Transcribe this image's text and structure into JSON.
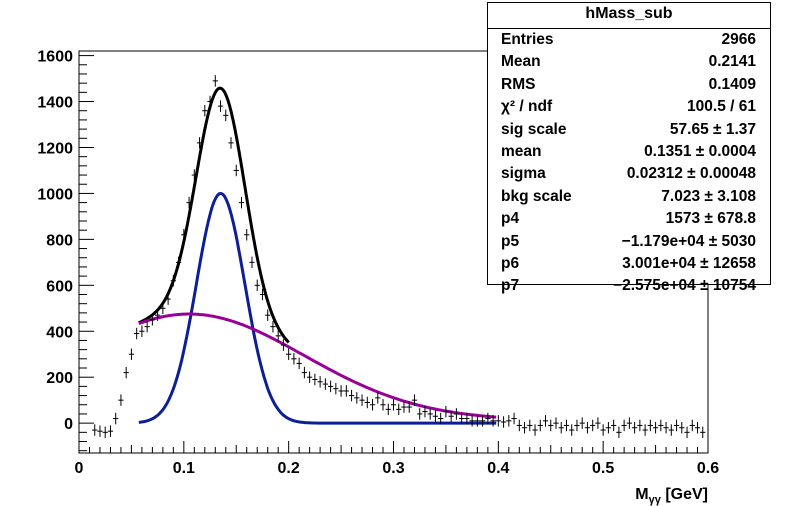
{
  "chart_data": {
    "type": "scatter",
    "title": "",
    "xlabel": "M",
    "xlabel_sub": "γγ",
    "xlabel_unit": " [GeV]",
    "ylabel": "",
    "xlim": [
      0,
      0.6
    ],
    "ylim": [
      -130,
      1620
    ],
    "x_ticks": [
      0,
      0.1,
      0.2,
      0.3,
      0.4,
      0.5,
      0.6
    ],
    "x_tick_labels": [
      "0",
      "0.1",
      "0.2",
      "0.3",
      "0.4",
      "0.5",
      "0.6"
    ],
    "y_ticks": [
      0,
      200,
      400,
      600,
      800,
      1000,
      1200,
      1400,
      1600
    ],
    "y_tick_labels": [
      "0",
      "200",
      "400",
      "600",
      "800",
      "1000",
      "1200",
      "1400",
      "1600"
    ],
    "grid": false,
    "colors": {
      "data": "#000000",
      "total_fit": "#000000",
      "signal": "#0d1f96",
      "background": "#990099"
    },
    "series": [
      {
        "kind": "points",
        "x": [
          0.015,
          0.02,
          0.025,
          0.03,
          0.035,
          0.04,
          0.045,
          0.05,
          0.055,
          0.06,
          0.065,
          0.07,
          0.075,
          0.08,
          0.085,
          0.09,
          0.095,
          0.1,
          0.105,
          0.11,
          0.115,
          0.12,
          0.125,
          0.13,
          0.135,
          0.14,
          0.145,
          0.15,
          0.155,
          0.16,
          0.165,
          0.17,
          0.175,
          0.18,
          0.185,
          0.19,
          0.195,
          0.2,
          0.205,
          0.21,
          0.215,
          0.22,
          0.225,
          0.23,
          0.235,
          0.24,
          0.245,
          0.25,
          0.255,
          0.26,
          0.265,
          0.27,
          0.275,
          0.28,
          0.285,
          0.29,
          0.295,
          0.3,
          0.305,
          0.31,
          0.315,
          0.32,
          0.325,
          0.33,
          0.335,
          0.34,
          0.345,
          0.35,
          0.355,
          0.36,
          0.365,
          0.37,
          0.375,
          0.38,
          0.385,
          0.39,
          0.395,
          0.4,
          0.405,
          0.41,
          0.415,
          0.42,
          0.425,
          0.43,
          0.435,
          0.44,
          0.445,
          0.45,
          0.455,
          0.46,
          0.465,
          0.47,
          0.475,
          0.48,
          0.485,
          0.49,
          0.495,
          0.5,
          0.505,
          0.51,
          0.515,
          0.52,
          0.525,
          0.53,
          0.535,
          0.54,
          0.545,
          0.55,
          0.555,
          0.56,
          0.565,
          0.57,
          0.575,
          0.58,
          0.585,
          0.59,
          0.595
        ],
        "y": [
          -30,
          -35,
          -40,
          -35,
          20,
          100,
          220,
          300,
          390,
          400,
          420,
          450,
          470,
          500,
          540,
          620,
          700,
          820,
          960,
          1080,
          1220,
          1360,
          1400,
          1490,
          1380,
          1340,
          1220,
          1100,
          960,
          820,
          700,
          600,
          560,
          470,
          420,
          380,
          340,
          300,
          280,
          260,
          220,
          200,
          190,
          180,
          170,
          160,
          150,
          140,
          140,
          120,
          110,
          100,
          90,
          80,
          110,
          80,
          60,
          80,
          60,
          70,
          70,
          100,
          40,
          50,
          40,
          30,
          20,
          50,
          30,
          40,
          20,
          20,
          10,
          10,
          10,
          20,
          10,
          10,
          5,
          10,
          20,
          -10,
          -20,
          -10,
          -30,
          -10,
          10,
          -10,
          0,
          -20,
          -10,
          -30,
          -10,
          0,
          -20,
          -10,
          0,
          -30,
          -20,
          -10,
          -40,
          -10,
          0,
          -20,
          -10,
          -30,
          -10,
          -20,
          -10,
          -20,
          -30,
          -10,
          -20,
          -40,
          -10,
          -20,
          -40
        ],
        "yerr": 25,
        "xerr": 0.0025
      },
      {
        "kind": "total_fit",
        "x_range": [
          0.057,
          0.2
        ]
      },
      {
        "kind": "signal",
        "x_range": [
          0.057,
          0.398
        ]
      },
      {
        "kind": "background",
        "x_range": [
          0.057,
          0.398
        ]
      }
    ]
  },
  "stats": {
    "title": "hMass_sub",
    "rows": [
      {
        "label": "Entries",
        "value": "2966"
      },
      {
        "label": "Mean",
        "value": "0.2141"
      },
      {
        "label": "RMS",
        "value": "0.1409"
      },
      {
        "label": "χ² / ndf",
        "value": "100.5 / 61"
      },
      {
        "label": "sig scale",
        "value": "57.65 ± 1.37"
      },
      {
        "label": "mean",
        "value": "0.1351 ± 0.0004"
      },
      {
        "label": "sigma",
        "value": "0.02312 ± 0.00048"
      },
      {
        "label": "bkg scale",
        "value": "7.023 ± 3.108"
      },
      {
        "label": "p4",
        "value": "1573 ± 678.8"
      },
      {
        "label": "p5",
        "value": "−1.179e+04 ± 5030"
      },
      {
        "label": "p6",
        "value": "3.001e+04 ± 12658"
      },
      {
        "label": "p7",
        "value": "−2.575e+04 ± 10754"
      }
    ]
  }
}
